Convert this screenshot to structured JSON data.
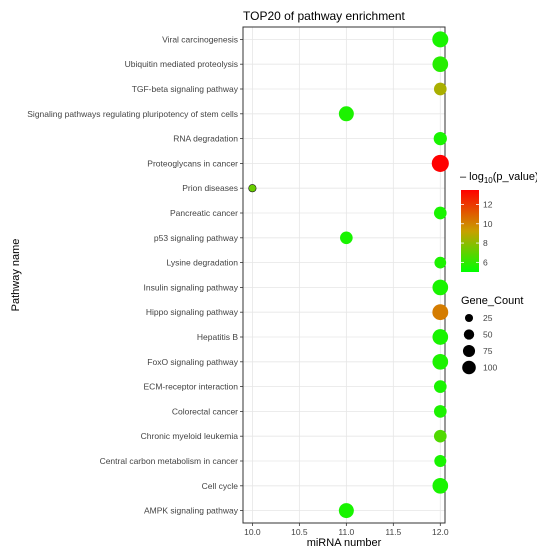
{
  "chart_data": {
    "type": "scatter",
    "title": "TOP20 of pathway enrichment",
    "xlabel": "miRNA number",
    "ylabel": "Pathway name",
    "xlim": [
      9.9,
      12.05
    ],
    "x_ticks": [
      "10.0",
      "10.5",
      "11.0",
      "11.5",
      "12.0"
    ],
    "x_tick_values": [
      10.0,
      10.5,
      11.0,
      11.5,
      12.0
    ],
    "grid": true,
    "legend_position": "right",
    "color_legend": {
      "title_prefix": "– log",
      "title_subscript": "10",
      "title_suffix": "(p_value)",
      "ticks": [
        "12",
        "10",
        "8",
        "6"
      ],
      "tick_values": [
        12,
        10,
        8,
        6
      ],
      "range": [
        5,
        13.5
      ],
      "low_color": "#00ff00",
      "mid_color": "#c8a000",
      "high_color": "#ff0000"
    },
    "size_legend": {
      "title": "Gene_Count",
      "labels": [
        "25",
        "50",
        "75",
        "100"
      ],
      "values": [
        25,
        50,
        75,
        100
      ]
    },
    "points": [
      {
        "pathway": "Viral carcinogenesis",
        "x": 12,
        "neglog10p": 5.5,
        "gene_count": 100
      },
      {
        "pathway": "Ubiquitin mediated proteolysis",
        "x": 12,
        "neglog10p": 5.8,
        "gene_count": 95
      },
      {
        "pathway": "TGF-beta signaling pathway",
        "x": 12,
        "neglog10p": 8.6,
        "gene_count": 55
      },
      {
        "pathway": "Signaling pathways regulating pluripotency of stem cells",
        "x": 11,
        "neglog10p": 5.6,
        "gene_count": 85
      },
      {
        "pathway": "RNA degradation",
        "x": 12,
        "neglog10p": 5.5,
        "gene_count": 62
      },
      {
        "pathway": "Proteoglycans in cancer",
        "x": 12,
        "neglog10p": 13.5,
        "gene_count": 118
      },
      {
        "pathway": "Prion diseases",
        "x": 10,
        "neglog10p": 7.2,
        "gene_count": 12
      },
      {
        "pathway": "Pancreatic cancer",
        "x": 12,
        "neglog10p": 5.5,
        "gene_count": 55
      },
      {
        "pathway": "p53 signaling pathway",
        "x": 11,
        "neglog10p": 5.5,
        "gene_count": 55
      },
      {
        "pathway": "Lysine degradation",
        "x": 12,
        "neglog10p": 5.6,
        "gene_count": 45
      },
      {
        "pathway": "Insulin signaling pathway",
        "x": 12,
        "neglog10p": 5.5,
        "gene_count": 95
      },
      {
        "pathway": "Hippo signaling pathway",
        "x": 12,
        "neglog10p": 10.2,
        "gene_count": 98
      },
      {
        "pathway": "Hepatitis B",
        "x": 12,
        "neglog10p": 5.5,
        "gene_count": 95
      },
      {
        "pathway": "FoxO signaling pathway",
        "x": 12,
        "neglog10p": 5.6,
        "gene_count": 95
      },
      {
        "pathway": "ECM-receptor interaction",
        "x": 12,
        "neglog10p": 5.5,
        "gene_count": 55
      },
      {
        "pathway": "Colorectal cancer",
        "x": 12,
        "neglog10p": 5.6,
        "gene_count": 55
      },
      {
        "pathway": "Chronic myeloid leukemia",
        "x": 12,
        "neglog10p": 6.7,
        "gene_count": 55
      },
      {
        "pathway": "Central carbon metabolism in cancer",
        "x": 12,
        "neglog10p": 5.5,
        "gene_count": 48
      },
      {
        "pathway": "Cell cycle",
        "x": 12,
        "neglog10p": 5.5,
        "gene_count": 95
      },
      {
        "pathway": "AMPK signaling pathway",
        "x": 11,
        "neglog10p": 5.5,
        "gene_count": 85
      }
    ]
  }
}
